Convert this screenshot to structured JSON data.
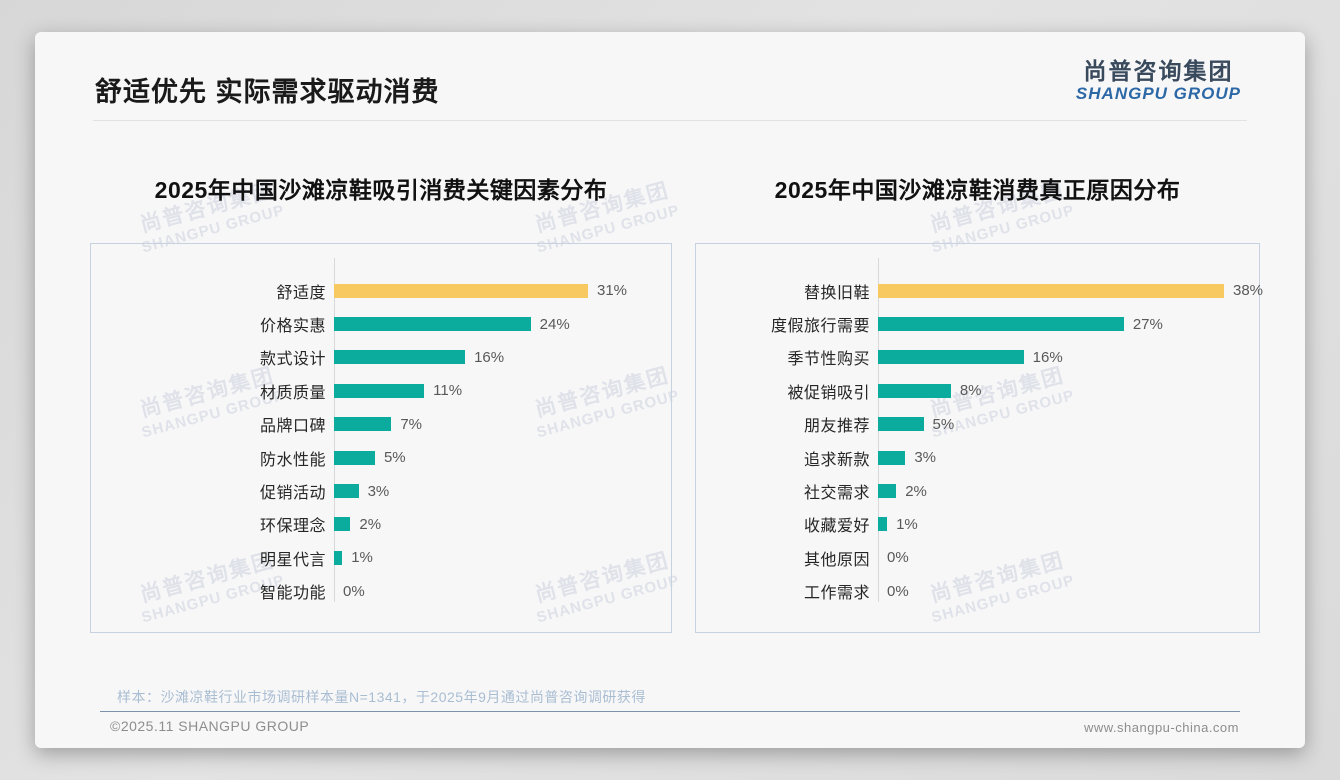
{
  "slide": {
    "title": "舒适优先 实际需求驱动消费",
    "logo": {
      "cn": "尚普咨询集团",
      "en": "SHANGPU GROUP"
    },
    "note": "样本：沙滩凉鞋行业市场调研样本量N=1341，于2025年9月通过尚普咨询调研获得",
    "footer_left": "©2025.11 SHANGPU GROUP",
    "footer_right": "www.shangpu-china.com",
    "watermark": {
      "cn": "尚普咨询集团",
      "en": "SHANGPU GROUP"
    }
  },
  "colors": {
    "highlight_bar": "#F8C960",
    "bar": "#0BAB9E",
    "value_label": "#595959",
    "category_label": "#262626",
    "note_text": "#A9BDD2",
    "logo_cn": "#394A5D",
    "logo_en": "#2C68A6",
    "panel_border": "#C6D2E0"
  },
  "chart_data": [
    {
      "type": "bar",
      "orientation": "horizontal",
      "title": "2025年中国沙滩凉鞋吸引消费关键因素分布",
      "categories": [
        "舒适度",
        "价格实惠",
        "款式设计",
        "材质质量",
        "品牌口碑",
        "防水性能",
        "促销活动",
        "环保理念",
        "明星代言",
        "智能功能"
      ],
      "values": [
        31,
        24,
        16,
        11,
        7,
        5,
        3,
        2,
        1,
        0
      ],
      "unit": "%",
      "highlight_index": 0,
      "value_labels_shown": true,
      "grid": false,
      "legend": false,
      "xlim": [
        0,
        31
      ]
    },
    {
      "type": "bar",
      "orientation": "horizontal",
      "title": "2025年中国沙滩凉鞋消费真正原因分布",
      "categories": [
        "替换旧鞋",
        "度假旅行需要",
        "季节性购买",
        "被促销吸引",
        "朋友推荐",
        "追求新款",
        "社交需求",
        "收藏爱好",
        "其他原因",
        "工作需求"
      ],
      "values": [
        38,
        27,
        16,
        8,
        5,
        3,
        2,
        1,
        0,
        0
      ],
      "unit": "%",
      "highlight_index": 0,
      "value_labels_shown": true,
      "grid": false,
      "legend": false,
      "xlim": [
        0,
        38
      ]
    }
  ]
}
